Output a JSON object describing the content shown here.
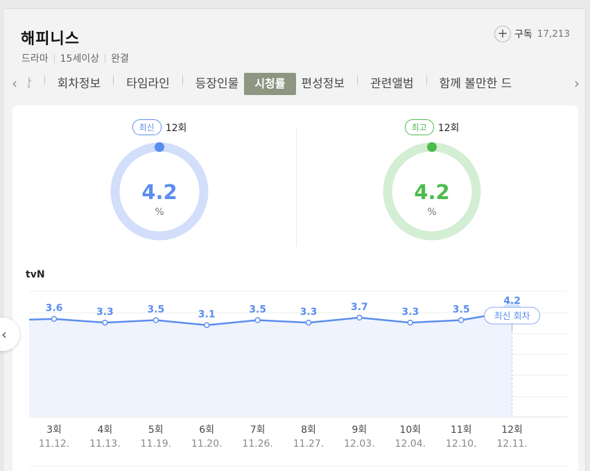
{
  "program": {
    "title": "해피니스",
    "meta": [
      "드라마",
      "15세이상",
      "완결"
    ],
    "subscribe_label": "구독",
    "subscribe_count": "17,213"
  },
  "tabs": {
    "items": [
      {
        "label": "방",
        "active": false
      },
      {
        "label": "회차정보",
        "active": false
      },
      {
        "label": "타임라인",
        "active": false
      },
      {
        "label": "등장인물",
        "active": false
      },
      {
        "label": "시청률",
        "active": true
      },
      {
        "label": "편성정보",
        "active": false
      },
      {
        "label": "관련앨범",
        "active": false
      },
      {
        "label": "함께 볼만한 드",
        "active": false
      }
    ]
  },
  "gauges": [
    {
      "badge": "최신",
      "episode": "12회",
      "value": "4.2",
      "unit": "%",
      "color": "#5b8def",
      "track": "#d2defa"
    },
    {
      "badge": "최고",
      "episode": "12회",
      "value": "4.2",
      "unit": "%",
      "color": "#4cbb4c",
      "track": "#d3eed3"
    }
  ],
  "network": "tvN",
  "latest_tooltip": "최신 회차",
  "colors": {
    "line": "#5b8def",
    "area": "#eef3fd"
  },
  "chart_data": {
    "type": "area",
    "categories": [
      "3회",
      "4회",
      "5회",
      "6회",
      "7회",
      "8회",
      "9회",
      "10회",
      "11회",
      "12회"
    ],
    "dates": [
      "11.12.",
      "11.13.",
      "11.19.",
      "11.20.",
      "11.26.",
      "11.27.",
      "12.03.",
      "12.04.",
      "12.10.",
      "12.11."
    ],
    "values": [
      3.6,
      3.3,
      3.5,
      3.1,
      3.5,
      3.3,
      3.7,
      3.3,
      3.5,
      4.2
    ],
    "value_labels": [
      "3.6",
      "3.3",
      "3.5",
      "3.1",
      "3.5",
      "3.3",
      "3.7",
      "3.3",
      "3.5",
      "4.2"
    ],
    "grid": true
  }
}
